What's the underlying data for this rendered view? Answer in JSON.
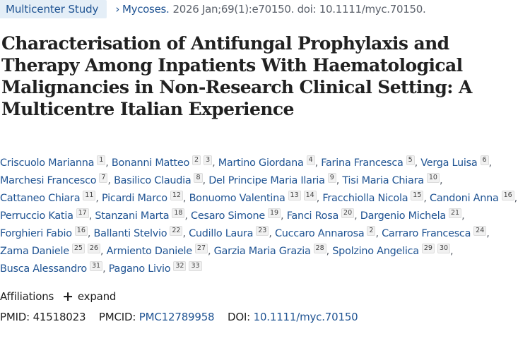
{
  "header": {
    "article_type": "Multicenter Study",
    "journal": "Mycoses.",
    "citation": "2026 Jan;69(1):e70150. doi: 10.1111/myc.70150."
  },
  "title": "Characterisation of Antifungal Prophylaxis and Therapy Among Inpatients With Haematological Malignancies in Non-Research Clinical Setting: A Multicentre Italian Experience",
  "authors": [
    {
      "name": "Criscuolo Marianna",
      "affs": [
        "1"
      ]
    },
    {
      "name": "Bonanni Matteo",
      "affs": [
        "2",
        "3"
      ]
    },
    {
      "name": "Martino Giordana",
      "affs": [
        "4"
      ]
    },
    {
      "name": "Farina Francesca",
      "affs": [
        "5"
      ]
    },
    {
      "name": "Verga Luisa",
      "affs": [
        "6"
      ]
    },
    {
      "name": "Marchesi Francesco",
      "affs": [
        "7"
      ]
    },
    {
      "name": "Basilico Claudia",
      "affs": [
        "8"
      ]
    },
    {
      "name": "Del Principe Maria Ilaria",
      "affs": [
        "9"
      ]
    },
    {
      "name": "Tisi Maria Chiara",
      "affs": [
        "10"
      ]
    },
    {
      "name": "Cattaneo Chiara",
      "affs": [
        "11"
      ]
    },
    {
      "name": "Picardi Marco",
      "affs": [
        "12"
      ]
    },
    {
      "name": "Bonuomo Valentina",
      "affs": [
        "13",
        "14"
      ]
    },
    {
      "name": "Fracchiolla Nicola",
      "affs": [
        "15"
      ]
    },
    {
      "name": "Candoni Anna",
      "affs": [
        "16"
      ]
    },
    {
      "name": "Perruccio Katia",
      "affs": [
        "17"
      ]
    },
    {
      "name": "Stanzani Marta",
      "affs": [
        "18"
      ]
    },
    {
      "name": "Cesaro Simone",
      "affs": [
        "19"
      ]
    },
    {
      "name": "Fanci Rosa",
      "affs": [
        "20"
      ]
    },
    {
      "name": "Dargenio Michela",
      "affs": [
        "21"
      ]
    },
    {
      "name": "Forghieri Fabio",
      "affs": [
        "16"
      ]
    },
    {
      "name": "Ballanti Stelvio",
      "affs": [
        "22"
      ]
    },
    {
      "name": "Cudillo Laura",
      "affs": [
        "23"
      ]
    },
    {
      "name": "Cuccaro Annarosa",
      "affs": [
        "2"
      ]
    },
    {
      "name": "Carraro Francesca",
      "affs": [
        "24"
      ]
    },
    {
      "name": "Zama Daniele",
      "affs": [
        "25",
        "26"
      ]
    },
    {
      "name": "Armiento Daniele",
      "affs": [
        "27"
      ]
    },
    {
      "name": "Garzia Maria Grazia",
      "affs": [
        "28"
      ]
    },
    {
      "name": "Spolzino Angelica",
      "affs": [
        "29",
        "30"
      ]
    },
    {
      "name": "Busca Alessandro",
      "affs": [
        "31"
      ]
    },
    {
      "name": "Pagano Livio",
      "affs": [
        "32",
        "33"
      ]
    }
  ],
  "affiliations": {
    "label": "Affiliations",
    "expand_label": "expand"
  },
  "identifiers": {
    "pmid_label": "PMID:",
    "pmid": "41518023",
    "pmcid_label": "PMCID:",
    "pmcid": "PMC12789958",
    "doi_label": "DOI:",
    "doi": "10.1111/myc.70150"
  }
}
